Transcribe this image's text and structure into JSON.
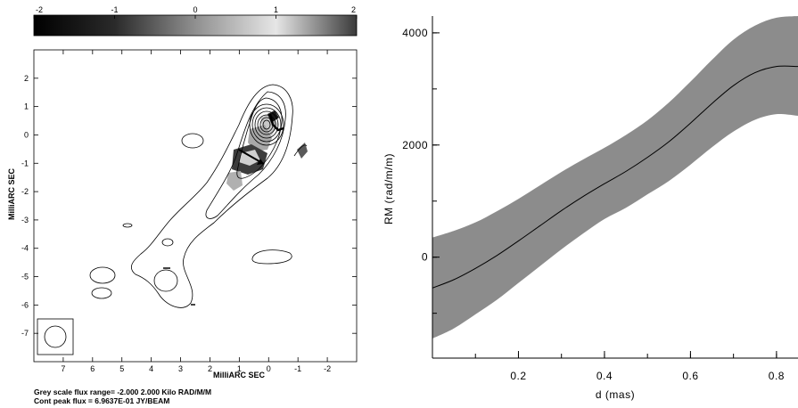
{
  "chart_data": [
    {
      "type": "heatmap",
      "colorbar": {
        "ticks": [
          "-2",
          "-1",
          "0",
          "1",
          "2"
        ],
        "range": [
          -2,
          2
        ],
        "colormap": "black-to-white-to-dark-grey"
      },
      "xlabel": "MilliARC SEC",
      "ylabel": "MilliARC SEC",
      "xticks": [
        "7",
        "6",
        "5",
        "4",
        "3",
        "2",
        "1",
        "0",
        "-1",
        "-2"
      ],
      "yticks": [
        "2",
        "1",
        "0",
        "-1",
        "-2",
        "-3",
        "-4",
        "-5",
        "-6",
        "-7"
      ],
      "xlim": [
        8,
        -3
      ],
      "ylim": [
        -8,
        3
      ],
      "contours": {
        "peak_position": [
          0,
          0
        ],
        "levels_count": 9
      },
      "footnotes": [
        "Grey scale flux range= -2.000 2.000 Kilo RAD/M/M",
        "Cont peak flux =  6.9637E-01 JY/BEAM"
      ]
    },
    {
      "type": "line",
      "xlabel": "d (mas)",
      "ylabel": "RM (rad/m/m)",
      "xticks": [
        "0.2",
        "0.4",
        "0.6",
        "0.8"
      ],
      "yticks": [
        "0",
        "2000",
        "4000"
      ],
      "xlim": [
        0,
        0.85
      ],
      "ylim": [
        -1800,
        4300
      ],
      "series": [
        {
          "x": [
            0.0,
            0.05,
            0.1,
            0.15,
            0.2,
            0.25,
            0.3,
            0.35,
            0.4,
            0.45,
            0.5,
            0.55,
            0.6,
            0.65,
            0.7,
            0.75,
            0.8,
            0.85
          ],
          "values": [
            -550,
            -400,
            -200,
            30,
            290,
            560,
            830,
            1080,
            1310,
            1530,
            1780,
            2060,
            2390,
            2740,
            3060,
            3290,
            3400,
            3400
          ],
          "upper": [
            350,
            470,
            620,
            820,
            1040,
            1280,
            1520,
            1740,
            1950,
            2180,
            2440,
            2760,
            3130,
            3520,
            3880,
            4130,
            4270,
            4300
          ],
          "lower": [
            -1450,
            -1270,
            -1020,
            -760,
            -460,
            -160,
            140,
            420,
            680,
            880,
            1120,
            1360,
            1650,
            1960,
            2240,
            2450,
            2550,
            2520
          ]
        }
      ]
    }
  ]
}
